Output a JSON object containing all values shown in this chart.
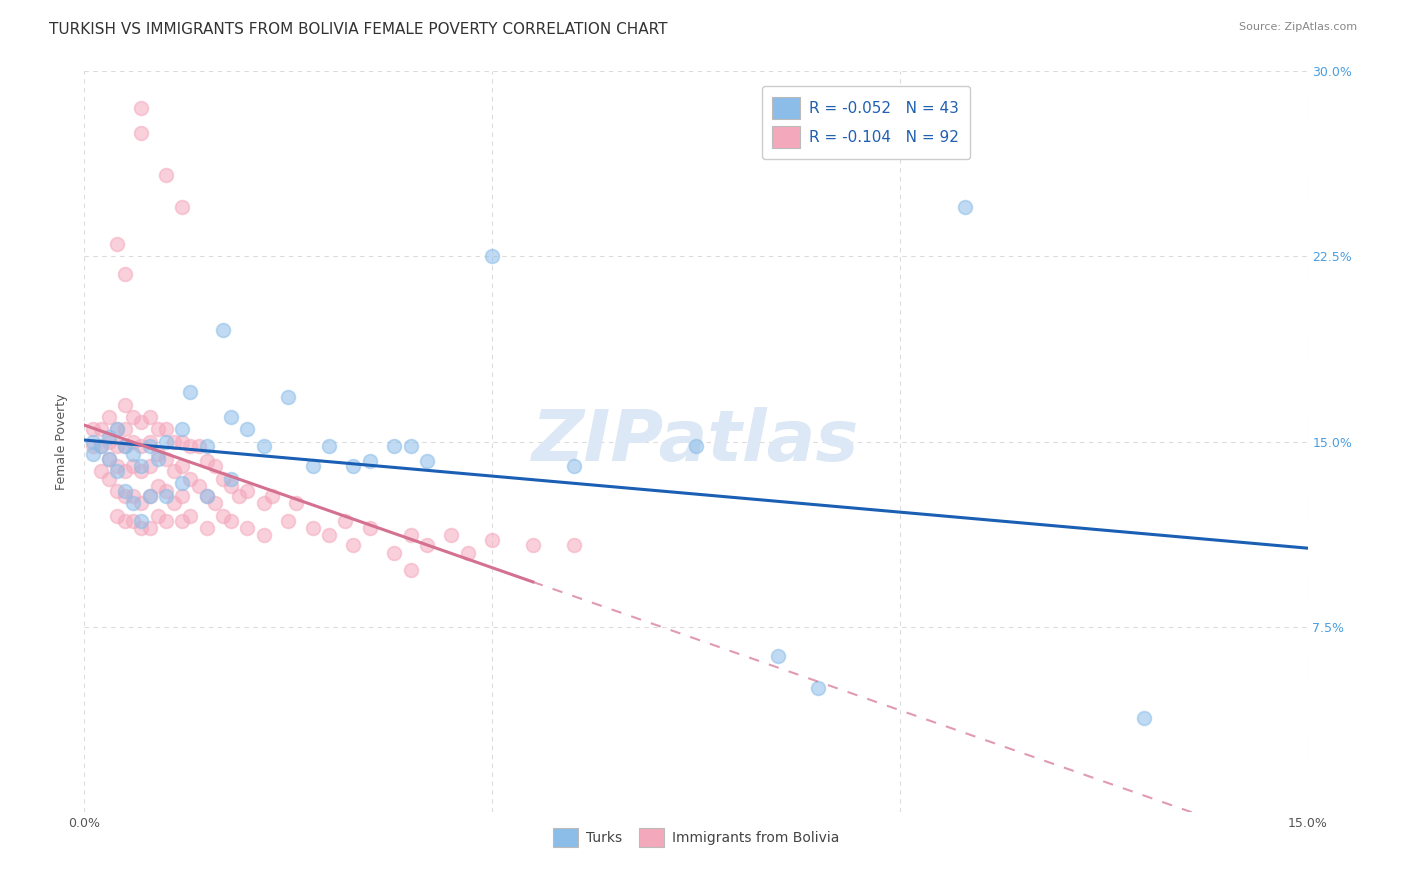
{
  "title": "TURKISH VS IMMIGRANTS FROM BOLIVIA FEMALE POVERTY CORRELATION CHART",
  "source": "Source: ZipAtlas.com",
  "ylabel": "Female Poverty",
  "watermark": "ZIPatlas",
  "xlim": [
    0.0,
    0.15
  ],
  "ylim": [
    0.0,
    0.3
  ],
  "legend_r1": "R = -0.052",
  "legend_n1": "N = 43",
  "legend_r2": "R = -0.104",
  "legend_n2": "N = 92",
  "legend_label1": "Turks",
  "legend_label2": "Immigrants from Bolivia",
  "turks_color": "#8bbde8",
  "bolivia_color": "#f4a8bc",
  "turks_line_color": "#1a5fb4",
  "bolivia_line_color": "#d47090",
  "turks_scatter": [
    [
      0.001,
      0.15
    ],
    [
      0.001,
      0.145
    ],
    [
      0.002,
      0.148
    ],
    [
      0.003,
      0.152
    ],
    [
      0.003,
      0.143
    ],
    [
      0.004,
      0.155
    ],
    [
      0.004,
      0.138
    ],
    [
      0.005,
      0.148
    ],
    [
      0.005,
      0.13
    ],
    [
      0.006,
      0.145
    ],
    [
      0.006,
      0.125
    ],
    [
      0.007,
      0.14
    ],
    [
      0.007,
      0.118
    ],
    [
      0.008,
      0.148
    ],
    [
      0.008,
      0.128
    ],
    [
      0.009,
      0.143
    ],
    [
      0.01,
      0.15
    ],
    [
      0.01,
      0.128
    ],
    [
      0.012,
      0.155
    ],
    [
      0.012,
      0.133
    ],
    [
      0.013,
      0.17
    ],
    [
      0.015,
      0.148
    ],
    [
      0.015,
      0.128
    ],
    [
      0.017,
      0.195
    ],
    [
      0.018,
      0.16
    ],
    [
      0.018,
      0.135
    ],
    [
      0.02,
      0.155
    ],
    [
      0.022,
      0.148
    ],
    [
      0.025,
      0.168
    ],
    [
      0.028,
      0.14
    ],
    [
      0.03,
      0.148
    ],
    [
      0.033,
      0.14
    ],
    [
      0.035,
      0.142
    ],
    [
      0.038,
      0.148
    ],
    [
      0.04,
      0.148
    ],
    [
      0.042,
      0.142
    ],
    [
      0.05,
      0.225
    ],
    [
      0.06,
      0.14
    ],
    [
      0.075,
      0.148
    ],
    [
      0.085,
      0.063
    ],
    [
      0.09,
      0.05
    ],
    [
      0.108,
      0.245
    ],
    [
      0.13,
      0.038
    ]
  ],
  "bolivia_scatter": [
    [
      0.001,
      0.155
    ],
    [
      0.001,
      0.148
    ],
    [
      0.002,
      0.155
    ],
    [
      0.002,
      0.148
    ],
    [
      0.002,
      0.138
    ],
    [
      0.003,
      0.16
    ],
    [
      0.003,
      0.15
    ],
    [
      0.003,
      0.143
    ],
    [
      0.003,
      0.135
    ],
    [
      0.004,
      0.155
    ],
    [
      0.004,
      0.148
    ],
    [
      0.004,
      0.14
    ],
    [
      0.004,
      0.13
    ],
    [
      0.004,
      0.12
    ],
    [
      0.005,
      0.165
    ],
    [
      0.005,
      0.155
    ],
    [
      0.005,
      0.148
    ],
    [
      0.005,
      0.138
    ],
    [
      0.005,
      0.128
    ],
    [
      0.005,
      0.118
    ],
    [
      0.006,
      0.16
    ],
    [
      0.006,
      0.15
    ],
    [
      0.006,
      0.14
    ],
    [
      0.006,
      0.128
    ],
    [
      0.006,
      0.118
    ],
    [
      0.007,
      0.158
    ],
    [
      0.007,
      0.148
    ],
    [
      0.007,
      0.138
    ],
    [
      0.007,
      0.125
    ],
    [
      0.007,
      0.115
    ],
    [
      0.008,
      0.16
    ],
    [
      0.008,
      0.15
    ],
    [
      0.008,
      0.14
    ],
    [
      0.008,
      0.128
    ],
    [
      0.008,
      0.115
    ],
    [
      0.009,
      0.155
    ],
    [
      0.009,
      0.145
    ],
    [
      0.009,
      0.132
    ],
    [
      0.009,
      0.12
    ],
    [
      0.01,
      0.155
    ],
    [
      0.01,
      0.143
    ],
    [
      0.01,
      0.13
    ],
    [
      0.01,
      0.118
    ],
    [
      0.011,
      0.15
    ],
    [
      0.011,
      0.138
    ],
    [
      0.011,
      0.125
    ],
    [
      0.012,
      0.15
    ],
    [
      0.012,
      0.14
    ],
    [
      0.012,
      0.128
    ],
    [
      0.012,
      0.118
    ],
    [
      0.013,
      0.148
    ],
    [
      0.013,
      0.135
    ],
    [
      0.013,
      0.12
    ],
    [
      0.014,
      0.148
    ],
    [
      0.014,
      0.132
    ],
    [
      0.015,
      0.142
    ],
    [
      0.015,
      0.128
    ],
    [
      0.015,
      0.115
    ],
    [
      0.016,
      0.14
    ],
    [
      0.016,
      0.125
    ],
    [
      0.017,
      0.135
    ],
    [
      0.017,
      0.12
    ],
    [
      0.018,
      0.132
    ],
    [
      0.018,
      0.118
    ],
    [
      0.019,
      0.128
    ],
    [
      0.02,
      0.13
    ],
    [
      0.02,
      0.115
    ],
    [
      0.022,
      0.125
    ],
    [
      0.022,
      0.112
    ],
    [
      0.023,
      0.128
    ],
    [
      0.025,
      0.118
    ],
    [
      0.026,
      0.125
    ],
    [
      0.028,
      0.115
    ],
    [
      0.03,
      0.112
    ],
    [
      0.032,
      0.118
    ],
    [
      0.033,
      0.108
    ],
    [
      0.035,
      0.115
    ],
    [
      0.038,
      0.105
    ],
    [
      0.04,
      0.112
    ],
    [
      0.04,
      0.098
    ],
    [
      0.042,
      0.108
    ],
    [
      0.045,
      0.112
    ],
    [
      0.047,
      0.105
    ],
    [
      0.05,
      0.11
    ],
    [
      0.055,
      0.108
    ],
    [
      0.06,
      0.108
    ],
    [
      0.007,
      0.285
    ],
    [
      0.007,
      0.275
    ],
    [
      0.01,
      0.258
    ],
    [
      0.012,
      0.245
    ],
    [
      0.004,
      0.23
    ],
    [
      0.005,
      0.218
    ]
  ],
  "background_color": "#ffffff",
  "grid_color": "#cccccc",
  "title_fontsize": 11,
  "axis_label_fontsize": 9,
  "tick_fontsize": 9,
  "watermark_fontsize": 52,
  "watermark_color": "#dce8f5",
  "scatter_size": 100,
  "scatter_alpha": 0.55,
  "scatter_linewidth": 1.2
}
